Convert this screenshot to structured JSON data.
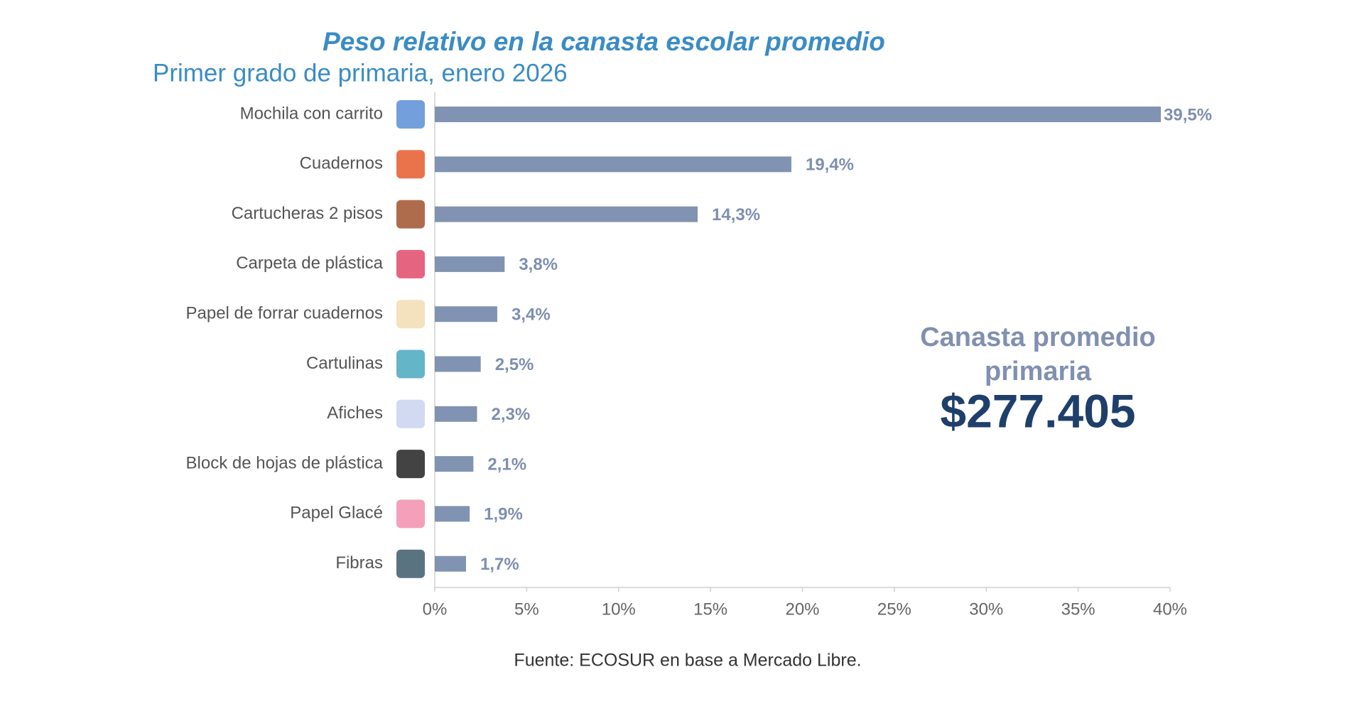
{
  "chart_data": {
    "type": "barh",
    "title": "Peso relativo en la canasta escolar promedio",
    "subtitle": "Primer grado de primaria, enero 2026",
    "categories": [
      "Mochila con carrito",
      "Cuadernos",
      "Cartucheras 2 pisos",
      "Carpeta de plástica",
      "Papel de forrar cuadernos",
      "Cartulinas",
      "Afiches",
      "Block de hojas de plástica",
      "Papel Glacé",
      "Fibras"
    ],
    "values": [
      39.5,
      19.4,
      14.3,
      3.8,
      3.4,
      2.5,
      2.3,
      2.1,
      1.9,
      1.7
    ],
    "value_labels": [
      "39,5%",
      "19,4%",
      "14,3%",
      "3,8%",
      "3,4%",
      "2,5%",
      "2,3%",
      "2,1%",
      "1,9%",
      "1,7%"
    ],
    "color": "#8193b2",
    "xlim": [
      0,
      40
    ],
    "xticks": [
      {
        "value": 0,
        "label": "0%"
      },
      {
        "value": 5,
        "label": "5%"
      },
      {
        "value": 10,
        "label": "10%"
      },
      {
        "value": 15,
        "label": "15%"
      },
      {
        "value": 20,
        "label": "20%"
      },
      {
        "value": 25,
        "label": "25%"
      },
      {
        "value": 30,
        "label": "30%"
      },
      {
        "value": 35,
        "label": "35%"
      },
      {
        "value": 40,
        "label": "40%"
      }
    ],
    "grid": false,
    "annotations": [
      "Canasta promedio",
      "primaria",
      "$277.405"
    ],
    "source": "Fuente: ECOSUR en base a Mercado Libre."
  }
}
